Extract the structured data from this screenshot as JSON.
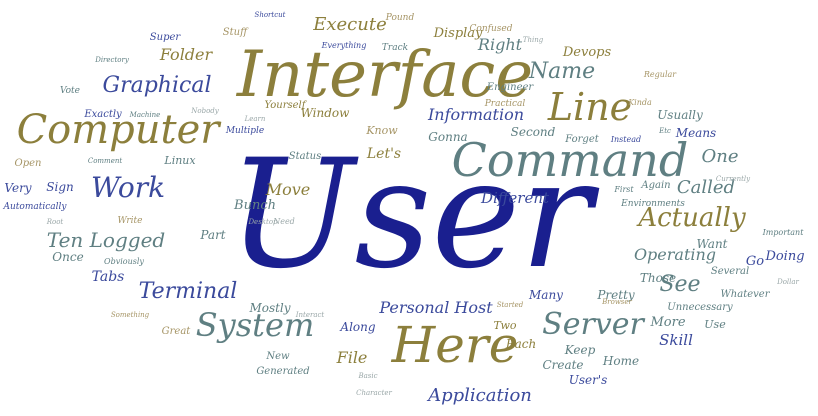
{
  "palette": {
    "navy": "#1a1f8f",
    "blue": "#3b4a9c",
    "olive": "#8c7f3c",
    "slate": "#5f7f82",
    "gray": "#9aa7a8",
    "tan": "#a69566"
  },
  "words": [
    {
      "text": "User",
      "color": "navy"
    },
    {
      "text": "Interface",
      "color": "olive"
    },
    {
      "text": "Command",
      "color": "slate"
    },
    {
      "text": "Computer",
      "color": "olive"
    },
    {
      "text": "Here",
      "color": "olive"
    },
    {
      "text": "Line",
      "color": "olive"
    },
    {
      "text": "System",
      "color": "slate"
    },
    {
      "text": "Server",
      "color": "slate"
    },
    {
      "text": "Work",
      "color": "blue"
    },
    {
      "text": "Graphical",
      "color": "blue"
    },
    {
      "text": "Actually",
      "color": "olive"
    },
    {
      "text": "Terminal",
      "color": "blue"
    },
    {
      "text": "Name",
      "color": "slate"
    },
    {
      "text": "Execute",
      "color": "olive"
    },
    {
      "text": "Information",
      "color": "blue"
    },
    {
      "text": "Application",
      "color": "blue"
    },
    {
      "text": "Ten Logged",
      "color": "slate"
    },
    {
      "text": "Personal Host",
      "color": "blue"
    },
    {
      "text": "See",
      "color": "slate"
    },
    {
      "text": "Called",
      "color": "slate"
    },
    {
      "text": "Operating",
      "color": "slate"
    },
    {
      "text": "Folder",
      "color": "olive"
    },
    {
      "text": "Right",
      "color": "slate"
    },
    {
      "text": "Devops",
      "color": "olive"
    },
    {
      "text": "Display",
      "color": "olive"
    },
    {
      "text": "Different",
      "color": "blue"
    },
    {
      "text": "One",
      "color": "slate"
    },
    {
      "text": "Move",
      "color": "olive"
    },
    {
      "text": "Bunch",
      "color": "slate"
    },
    {
      "text": "Skill",
      "color": "blue"
    },
    {
      "text": "More",
      "color": "slate"
    },
    {
      "text": "File",
      "color": "olive"
    },
    {
      "text": "Along",
      "color": "blue"
    },
    {
      "text": "Create",
      "color": "slate"
    },
    {
      "text": "Keep",
      "color": "slate"
    },
    {
      "text": "Home",
      "color": "slate"
    },
    {
      "text": "Each",
      "color": "olive"
    },
    {
      "text": "Two",
      "color": "olive"
    },
    {
      "text": "Many",
      "color": "blue"
    },
    {
      "text": "Pretty",
      "color": "slate"
    },
    {
      "text": "Those",
      "color": "slate"
    },
    {
      "text": "Want",
      "color": "slate"
    },
    {
      "text": "Go",
      "color": "blue"
    },
    {
      "text": "Doing",
      "color": "blue"
    },
    {
      "text": "Several",
      "color": "slate"
    },
    {
      "text": "Whatever",
      "color": "slate"
    },
    {
      "text": "Unnecessary",
      "color": "slate"
    },
    {
      "text": "Use",
      "color": "slate"
    },
    {
      "text": "Means",
      "color": "blue"
    },
    {
      "text": "Usually",
      "color": "slate"
    },
    {
      "text": "Second",
      "color": "slate"
    },
    {
      "text": "Gonna",
      "color": "slate"
    },
    {
      "text": "Know",
      "color": "tan"
    },
    {
      "text": "Let's",
      "color": "olive"
    },
    {
      "text": "Status",
      "color": "slate"
    },
    {
      "text": "Window",
      "color": "olive"
    },
    {
      "text": "Yourself",
      "color": "olive"
    },
    {
      "text": "Super",
      "color": "blue"
    },
    {
      "text": "Stuff",
      "color": "tan"
    },
    {
      "text": "Pound",
      "color": "tan"
    },
    {
      "text": "Confused",
      "color": "tan"
    },
    {
      "text": "Track",
      "color": "slate"
    },
    {
      "text": "Everything",
      "color": "blue"
    },
    {
      "text": "Shortcut",
      "color": "blue"
    },
    {
      "text": "Directory",
      "color": "slate"
    },
    {
      "text": "Vote",
      "color": "slate"
    },
    {
      "text": "Exactly",
      "color": "blue"
    },
    {
      "text": "Machine",
      "color": "slate"
    },
    {
      "text": "Nobody",
      "color": "gray"
    },
    {
      "text": "Learn",
      "color": "gray"
    },
    {
      "text": "Multiple",
      "color": "blue"
    },
    {
      "text": "Open",
      "color": "tan"
    },
    {
      "text": "Linux",
      "color": "slate"
    },
    {
      "text": "Command",
      "color": "slate",
      "alt": "Comment"
    },
    {
      "text": "Very",
      "color": "blue"
    },
    {
      "text": "Sign",
      "color": "blue"
    },
    {
      "text": "Automatically",
      "color": "blue"
    },
    {
      "text": "Root",
      "color": "gray"
    },
    {
      "text": "Write",
      "color": "tan"
    },
    {
      "text": "Once",
      "color": "slate"
    },
    {
      "text": "Obviously",
      "color": "slate"
    },
    {
      "text": "Tabs",
      "color": "blue"
    },
    {
      "text": "Part",
      "color": "slate"
    },
    {
      "text": "Mostly",
      "color": "slate"
    },
    {
      "text": "Interact",
      "color": "gray"
    },
    {
      "text": "Something",
      "color": "tan"
    },
    {
      "text": "Great",
      "color": "tan"
    },
    {
      "text": "New",
      "color": "slate"
    },
    {
      "text": "Generated",
      "color": "slate"
    },
    {
      "text": "Basic",
      "color": "gray"
    },
    {
      "text": "Character",
      "color": "gray"
    },
    {
      "text": "Started",
      "color": "tan"
    },
    {
      "text": "Browser",
      "color": "tan"
    },
    {
      "text": "User's",
      "color": "blue"
    },
    {
      "text": "Important",
      "color": "slate"
    },
    {
      "text": "Currently",
      "color": "gray"
    },
    {
      "text": "Dollar",
      "color": "gray"
    },
    {
      "text": "Engineer",
      "color": "slate"
    },
    {
      "text": "Practical",
      "color": "tan"
    },
    {
      "text": "Regular",
      "color": "tan"
    },
    {
      "text": "Kinda",
      "color": "tan"
    },
    {
      "text": "Instead",
      "color": "blue"
    },
    {
      "text": "Forget",
      "color": "slate"
    },
    {
      "text": "First",
      "color": "slate"
    },
    {
      "text": "Again",
      "color": "slate"
    },
    {
      "text": "Environments",
      "color": "slate"
    },
    {
      "text": "Etc",
      "color": "slate"
    },
    {
      "text": "Need",
      "color": "gray"
    },
    {
      "text": "Desktop",
      "color": "gray"
    },
    {
      "text": "Thing",
      "color": "gray"
    }
  ]
}
